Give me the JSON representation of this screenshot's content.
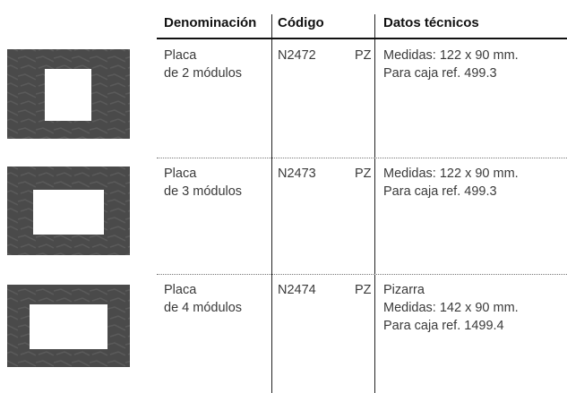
{
  "table": {
    "header": [
      "Denominación",
      "Código",
      "Datos técnicos"
    ],
    "rows": [
      {
        "name": [
          "Placa",
          "de 2 módulos"
        ],
        "code": "N2472",
        "unit": "PZ",
        "specs": [
          "Medidas: 122 x 90 mm.",
          "Para caja ref. 499.3"
        ]
      },
      {
        "name": [
          "Placa",
          "de 3 módulos"
        ],
        "code": "N2473",
        "unit": "PZ",
        "specs": [
          "Medidas: 122 x 90 mm.",
          "Para caja ref. 499.3"
        ]
      },
      {
        "name": [
          "Placa",
          "de 4 módulos"
        ],
        "code": "N2474",
        "unit": "PZ",
        "specs": [
          "Pizarra",
          "Medidas: 142 x 90 mm.",
          "Para caja ref. 1499.4"
        ]
      }
    ]
  }
}
